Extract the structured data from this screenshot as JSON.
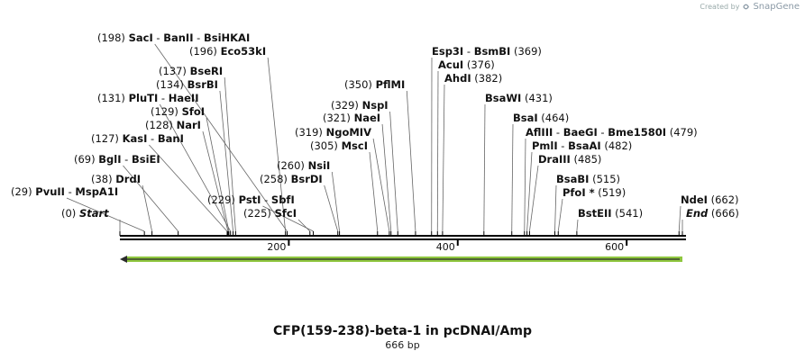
{
  "watermark": {
    "prefix": "Created by",
    "brand": "SnapGene"
  },
  "map": {
    "title": "CFP(159-238)-beta-1 in pcDNAI/Amp",
    "length_label": "666 bp",
    "length_bp": 666,
    "ticks": [
      {
        "pos": 200,
        "label": "200"
      },
      {
        "pos": 400,
        "label": "400"
      },
      {
        "pos": 600,
        "label": "600"
      }
    ],
    "feature": {
      "name": "feature-arrow",
      "start": 0,
      "end": 666,
      "direction": "reverse",
      "color": "#8fc63f"
    },
    "sites": [
      {
        "id": "start",
        "pos": "(0)",
        "name": "Start",
        "italic": true,
        "position_bp": 0
      },
      {
        "id": "pvuii",
        "pos": "(29)",
        "name": "PvuII",
        "extra": "MspA1I",
        "position_bp": 29
      },
      {
        "id": "drdi",
        "pos": "(38)",
        "name": "DrdI",
        "position_bp": 38
      },
      {
        "id": "bgli",
        "pos": "(69)",
        "name": "BglI",
        "extra": "BsiEI",
        "position_bp": 69
      },
      {
        "id": "kasi",
        "pos": "(127)",
        "name": "KasI",
        "extra": "BanI",
        "position_bp": 127
      },
      {
        "id": "nari",
        "pos": "(128)",
        "name": "NarI",
        "position_bp": 128
      },
      {
        "id": "sfoi",
        "pos": "(129)",
        "name": "SfoI",
        "position_bp": 129
      },
      {
        "id": "pluti",
        "pos": "(131)",
        "name": "PluTI",
        "extra": "HaeII",
        "position_bp": 131
      },
      {
        "id": "bsrbi",
        "pos": "(134)",
        "name": "BsrBI",
        "position_bp": 134
      },
      {
        "id": "bseri",
        "pos": "(137)",
        "name": "BseRI",
        "position_bp": 137
      },
      {
        "id": "eco53ki",
        "pos": "(196)",
        "name": "Eco53kI",
        "position_bp": 196
      },
      {
        "id": "saci",
        "pos": "(198)",
        "name": "SacI",
        "extra": "BanII",
        "extra2": "BsiHKAI",
        "position_bp": 198
      },
      {
        "id": "sfci",
        "pos": "(225)",
        "name": "SfcI",
        "position_bp": 225
      },
      {
        "id": "psti",
        "pos": "(229)",
        "name": "PstI",
        "extra": "SbfI",
        "position_bp": 229
      },
      {
        "id": "bsrdi",
        "pos": "(258)",
        "name": "BsrDI",
        "position_bp": 258
      },
      {
        "id": "nsii",
        "pos": "(260)",
        "name": "NsiI",
        "position_bp": 260
      },
      {
        "id": "msci",
        "pos": "(305)",
        "name": "MscI",
        "position_bp": 305
      },
      {
        "id": "ngomiv",
        "pos": "(319)",
        "name": "NgoMIV",
        "position_bp": 319
      },
      {
        "id": "naei",
        "pos": "(321)",
        "name": "NaeI",
        "position_bp": 321
      },
      {
        "id": "nspi",
        "pos": "(329)",
        "name": "NspI",
        "position_bp": 329
      },
      {
        "id": "pflmi",
        "pos": "(350)",
        "name": "PflMI",
        "position_bp": 350
      },
      {
        "id": "esp3i",
        "pos": "(369)",
        "name": "Esp3I",
        "extra": "BsmBI",
        "position_bp": 369
      },
      {
        "id": "acui",
        "pos": "(376)",
        "name": "AcuI",
        "position_bp": 376
      },
      {
        "id": "ahdi",
        "pos": "(382)",
        "name": "AhdI",
        "position_bp": 382
      },
      {
        "id": "bsawi",
        "pos": "(431)",
        "name": "BsaWI",
        "position_bp": 431
      },
      {
        "id": "bsai",
        "pos": "(464)",
        "name": "BsaI",
        "position_bp": 464
      },
      {
        "id": "aflii",
        "pos": "(479)",
        "name": "AflIII",
        "extra": "BaeGI",
        "extra2": "Bme1580I",
        "position_bp": 479
      },
      {
        "id": "pmli",
        "pos": "(482)",
        "name": "PmlI",
        "extra": "BsaAI",
        "position_bp": 482
      },
      {
        "id": "draiii",
        "pos": "(485)",
        "name": "DraIII",
        "position_bp": 485
      },
      {
        "id": "bsabi",
        "pos": "(515)",
        "name": "BsaBI",
        "position_bp": 515
      },
      {
        "id": "pfoi",
        "pos": "(519)",
        "name": "PfoI *",
        "position_bp": 519
      },
      {
        "id": "bsteii",
        "pos": "(541)",
        "name": "BstEII",
        "position_bp": 541
      },
      {
        "id": "ndei",
        "pos": "(662)",
        "name": "NdeI",
        "position_bp": 662
      },
      {
        "id": "end",
        "pos": "(666)",
        "name": "End",
        "italic": true,
        "position_bp": 666
      }
    ]
  }
}
